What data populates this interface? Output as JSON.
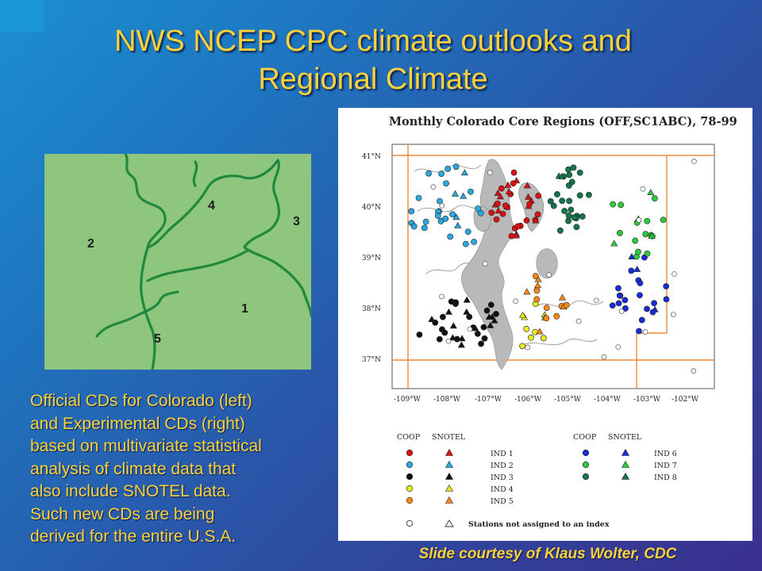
{
  "slide": {
    "title_line1": "NWS NCEP CPC climate outlooks and",
    "title_line2": "Regional Climate",
    "caption_lines": [
      "Official CDs for Colorado (left)",
      "and Experimental CDs (right)",
      "based on multivariate statistical",
      "analysis of climate data that",
      "also include SNOTEL data.",
      "Such new CDs are being",
      "derived for the entire U.S.A."
    ],
    "credit": "Slide courtesy of Klaus Wolter, CDC"
  },
  "colors": {
    "title": "#ffd23a",
    "map_fill": "#8fc67e",
    "map_border": "#1f8a3e",
    "ind1": "#dd1111",
    "ind2": "#2aa8e0",
    "ind3": "#111111",
    "ind4": "#e8e820",
    "ind5": "#ff8a1a",
    "ind6": "#1a2ad8",
    "ind7": "#2bcc3c",
    "ind8": "#13754a"
  },
  "cd_map": {
    "region_labels": [
      "4",
      "3",
      "2",
      "1",
      "5"
    ]
  },
  "figure": {
    "title": "Monthly Colorado Core Regions (OFF,SC1ABC), 78-99",
    "lat_labels": [
      "41°N",
      "40°N",
      "39°N",
      "38°N",
      "37°N"
    ],
    "lon_labels": [
      "-109°W",
      "-108°W",
      "-107°W",
      "-106°W",
      "-105°W",
      "-104°W",
      "-103°W",
      "-102°W"
    ],
    "legend": {
      "left_header_coop": "COOP",
      "left_header_snotel": "SNOTEL",
      "right_header_coop": "COOP",
      "right_header_snotel": "SNOTEL",
      "left_items": [
        "IND 1",
        "IND 2",
        "IND 3",
        "IND 4",
        "IND 5"
      ],
      "right_items": [
        "IND 6",
        "IND 7",
        "IND 8"
      ],
      "unassigned": "Stations not assigned to an index"
    }
  }
}
